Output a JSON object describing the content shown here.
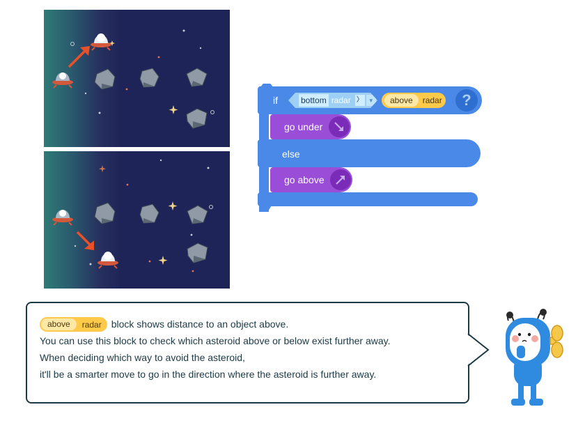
{
  "code_block": {
    "if_keyword": "if",
    "else_keyword": "else",
    "condition_left": {
      "tag": "bottom",
      "label": "radar",
      "op": "〉",
      "dropdown": "▾"
    },
    "condition_right": {
      "tag": "above",
      "label": "radar"
    },
    "help_button": "?",
    "then_command": "go under",
    "else_command": "go above"
  },
  "bubble": {
    "pill": {
      "tag": "above",
      "label": "radar"
    },
    "line1_suffix": "block shows distance to an object above.",
    "line2": "You can use this block to check which asteroid above or below exist further away.",
    "line3": "When deciding which way to avoid the asteroid,",
    "line4": "it'll be a smarter move to go in the direction where the asteroid is further away."
  },
  "colors": {
    "if_block": "#4a89e8",
    "command_block": "#9a4ed8",
    "radar_pill": "#ffc94a",
    "arrow": "#e8502a",
    "space": "#1f2458"
  }
}
